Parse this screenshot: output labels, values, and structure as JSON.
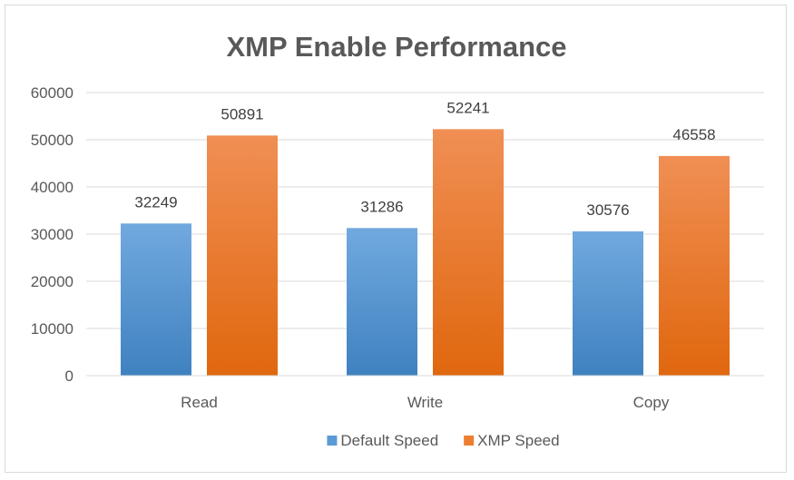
{
  "chart_data": {
    "type": "bar",
    "title": "XMP Enable Performance",
    "categories": [
      "Read",
      "Write",
      "Copy"
    ],
    "series": [
      {
        "name": "Default Speed",
        "values": [
          32249,
          31286,
          30576
        ],
        "color": "#5b9bd5",
        "color_light": "#71a9df",
        "color_dark": "#3f81c0"
      },
      {
        "name": "XMP Speed",
        "values": [
          50891,
          52241,
          46558
        ],
        "color": "#ed7d31",
        "color_light": "#f08f54",
        "color_dark": "#e0670e"
      }
    ],
    "ylim": [
      0,
      60000
    ],
    "yticks": [
      "60000",
      "50000",
      "40000",
      "30000",
      "20000",
      "10000",
      "0"
    ],
    "grid": true,
    "legend_position": "bottom"
  }
}
